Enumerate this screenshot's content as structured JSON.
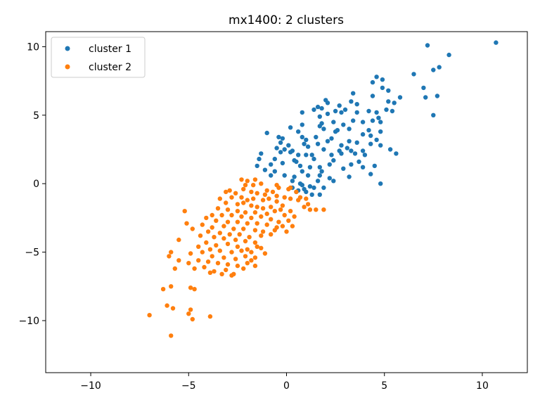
{
  "chart_data": {
    "type": "scatter",
    "title": "mx1400: 2 clusters",
    "xlabel": "",
    "ylabel": "",
    "xlim": [
      -12.3,
      12.3
    ],
    "ylim": [
      -13.8,
      11.1
    ],
    "xticks": [
      -10,
      -5,
      0,
      5,
      10
    ],
    "yticks": [
      -10,
      -5,
      0,
      5,
      10
    ],
    "grid": false,
    "legend": "top-left",
    "series": [
      {
        "name": "cluster 1",
        "color": "#1f77b4",
        "points": [
          [
            10.7,
            10.3
          ],
          [
            7.2,
            10.1
          ],
          [
            8.3,
            9.4
          ],
          [
            7.8,
            8.5
          ],
          [
            7.5,
            8.3
          ],
          [
            6.5,
            8.0
          ],
          [
            4.6,
            7.8
          ],
          [
            4.9,
            7.6
          ],
          [
            4.4,
            7.4
          ],
          [
            7.0,
            7.0
          ],
          [
            4.9,
            7.0
          ],
          [
            5.2,
            6.8
          ],
          [
            3.4,
            6.6
          ],
          [
            7.7,
            6.4
          ],
          [
            7.1,
            6.3
          ],
          [
            4.4,
            6.4
          ],
          [
            5.8,
            6.3
          ],
          [
            3.3,
            6.0
          ],
          [
            5.2,
            6.0
          ],
          [
            5.5,
            5.9
          ],
          [
            2.0,
            6.1
          ],
          [
            2.1,
            5.9
          ],
          [
            3.6,
            5.8
          ],
          [
            1.6,
            5.6
          ],
          [
            2.7,
            5.7
          ],
          [
            1.4,
            5.4
          ],
          [
            1.8,
            5.5
          ],
          [
            2.5,
            5.3
          ],
          [
            3.0,
            5.4
          ],
          [
            4.2,
            5.3
          ],
          [
            4.6,
            5.2
          ],
          [
            5.1,
            5.4
          ],
          [
            5.4,
            5.3
          ],
          [
            3.6,
            5.2
          ],
          [
            2.8,
            5.2
          ],
          [
            2.1,
            5.1
          ],
          [
            0.8,
            5.2
          ],
          [
            1.7,
            4.9
          ],
          [
            4.7,
            4.8
          ],
          [
            7.5,
            5.0
          ],
          [
            1.8,
            4.4
          ],
          [
            2.4,
            4.5
          ],
          [
            3.4,
            4.6
          ],
          [
            3.9,
            4.5
          ],
          [
            4.4,
            4.6
          ],
          [
            4.8,
            4.5
          ],
          [
            0.8,
            4.3
          ],
          [
            1.7,
            4.2
          ],
          [
            2.9,
            4.3
          ],
          [
            3.2,
            4.0
          ],
          [
            1.9,
            4.0
          ],
          [
            0.2,
            4.1
          ],
          [
            2.6,
            3.9
          ],
          [
            2.5,
            3.8
          ],
          [
            0.6,
            3.8
          ],
          [
            4.2,
            3.9
          ],
          [
            4.8,
            3.8
          ],
          [
            3.9,
            3.6
          ],
          [
            0.8,
            3.4
          ],
          [
            1.5,
            3.4
          ],
          [
            2.3,
            3.3
          ],
          [
            1.0,
            3.2
          ],
          [
            -1.0,
            3.7
          ],
          [
            -0.4,
            3.4
          ],
          [
            -0.2,
            3.3
          ],
          [
            4.3,
            3.5
          ],
          [
            4.6,
            3.2
          ],
          [
            2.1,
            3.1
          ],
          [
            3.2,
            3.1
          ],
          [
            3.6,
            3.0
          ],
          [
            4.3,
            2.9
          ],
          [
            4.8,
            2.8
          ],
          [
            -0.3,
            3.0
          ],
          [
            0.1,
            2.8
          ],
          [
            0.9,
            2.9
          ],
          [
            1.6,
            2.9
          ],
          [
            2.8,
            2.8
          ],
          [
            3.1,
            2.6
          ],
          [
            1.1,
            2.7
          ],
          [
            -0.5,
            2.6
          ],
          [
            -0.1,
            2.5
          ],
          [
            0.3,
            2.4
          ],
          [
            1.9,
            2.5
          ],
          [
            2.7,
            2.4
          ],
          [
            3.3,
            2.4
          ],
          [
            3.9,
            2.4
          ],
          [
            5.3,
            2.5
          ],
          [
            5.6,
            2.2
          ],
          [
            -1.3,
            2.2
          ],
          [
            -0.3,
            2.3
          ],
          [
            0.2,
            2.3
          ],
          [
            0.6,
            2.1
          ],
          [
            1.0,
            2.1
          ],
          [
            1.3,
            2.1
          ],
          [
            2.3,
            2.1
          ],
          [
            2.8,
            2.2
          ],
          [
            3.5,
            2.2
          ],
          [
            4.0,
            2.1
          ],
          [
            -1.4,
            1.8
          ],
          [
            -0.6,
            1.8
          ],
          [
            0.4,
            1.7
          ],
          [
            1.4,
            1.8
          ],
          [
            2.4,
            1.7
          ],
          [
            3.7,
            1.6
          ],
          [
            -0.2,
            1.5
          ],
          [
            0.5,
            1.6
          ],
          [
            0.7,
            1.3
          ],
          [
            -1.5,
            1.3
          ],
          [
            -0.8,
            1.4
          ],
          [
            1.2,
            1.2
          ],
          [
            1.7,
            1.2
          ],
          [
            2.2,
            1.4
          ],
          [
            3.3,
            1.4
          ],
          [
            4.5,
            1.3
          ],
          [
            -1.1,
            1.0
          ],
          [
            -0.6,
            0.9
          ],
          [
            0.8,
            0.9
          ],
          [
            1.1,
            0.6
          ],
          [
            1.8,
            0.9
          ],
          [
            2.9,
            1.1
          ],
          [
            3.9,
            1.2
          ],
          [
            -0.8,
            0.6
          ],
          [
            -0.1,
            0.6
          ],
          [
            0.4,
            0.5
          ],
          [
            1.7,
            0.6
          ],
          [
            2.2,
            0.4
          ],
          [
            3.2,
            0.5
          ],
          [
            4.3,
            0.7
          ],
          [
            0.3,
            0.2
          ],
          [
            0.7,
            0.0
          ],
          [
            1.6,
            0.2
          ],
          [
            2.4,
            0.2
          ],
          [
            4.8,
            0.0
          ],
          [
            0.8,
            -0.1
          ],
          [
            1.4,
            -0.3
          ],
          [
            0.9,
            -0.4
          ],
          [
            1.3,
            -0.8
          ],
          [
            1.7,
            -0.8
          ],
          [
            0.5,
            -0.6
          ],
          [
            1.0,
            -0.6
          ],
          [
            1.9,
            -0.3
          ],
          [
            0.3,
            -0.3
          ],
          [
            1.2,
            -0.2
          ],
          [
            0.6,
            -0.5
          ]
        ]
      },
      {
        "name": "cluster 2",
        "color": "#ff7f0e",
        "points": [
          [
            -0.2,
            -1.6
          ],
          [
            -2.3,
            0.3
          ],
          [
            -2.0,
            0.2
          ],
          [
            -1.6,
            0.3
          ],
          [
            -2.1,
            -0.1
          ],
          [
            -1.7,
            -0.1
          ],
          [
            -1.3,
            0.0
          ],
          [
            -0.5,
            -0.1
          ],
          [
            -1.0,
            -0.5
          ],
          [
            -0.4,
            -0.3
          ],
          [
            0.1,
            -0.4
          ],
          [
            0.5,
            -0.6
          ],
          [
            -2.2,
            -0.4
          ],
          [
            -1.8,
            -0.6
          ],
          [
            -1.5,
            -0.7
          ],
          [
            -0.7,
            -0.6
          ],
          [
            0.2,
            -0.3
          ],
          [
            -3.1,
            -0.6
          ],
          [
            -2.9,
            -0.5
          ],
          [
            -2.6,
            -0.7
          ],
          [
            -1.1,
            -0.8
          ],
          [
            -0.5,
            -0.9
          ],
          [
            -0.1,
            -1.0
          ],
          [
            0.7,
            -1.0
          ],
          [
            1.0,
            -1.1
          ],
          [
            -3.4,
            -1.1
          ],
          [
            -2.8,
            -1.0
          ],
          [
            -2.3,
            -1.0
          ],
          [
            -2.0,
            -1.2
          ],
          [
            -1.7,
            -1.1
          ],
          [
            -1.2,
            -1.2
          ],
          [
            -0.9,
            -1.1
          ],
          [
            -0.5,
            -1.3
          ],
          [
            0.2,
            -1.1
          ],
          [
            0.6,
            -1.2
          ],
          [
            1.1,
            -1.5
          ],
          [
            1.5,
            -1.9
          ],
          [
            1.9,
            -1.9
          ],
          [
            1.2,
            -1.9
          ],
          [
            0.9,
            -1.7
          ],
          [
            -3.1,
            -1.4
          ],
          [
            -2.5,
            -1.5
          ],
          [
            -2.2,
            -1.4
          ],
          [
            -1.8,
            -1.6
          ],
          [
            -1.5,
            -1.7
          ],
          [
            -1.2,
            -1.8
          ],
          [
            -0.8,
            -1.7
          ],
          [
            -0.3,
            -1.9
          ],
          [
            0.2,
            -2.0
          ],
          [
            -3.5,
            -1.8
          ],
          [
            -3.0,
            -1.9
          ],
          [
            -2.5,
            -2.0
          ],
          [
            -2.1,
            -2.1
          ],
          [
            -1.6,
            -2.1
          ],
          [
            -1.0,
            -2.2
          ],
          [
            -0.6,
            -2.0
          ],
          [
            -0.1,
            -2.3
          ],
          [
            0.4,
            -2.4
          ],
          [
            -3.8,
            -2.3
          ],
          [
            -3.3,
            -2.3
          ],
          [
            -2.8,
            -2.3
          ],
          [
            -2.3,
            -2.4
          ],
          [
            -1.8,
            -2.5
          ],
          [
            -1.3,
            -2.4
          ],
          [
            -0.8,
            -2.6
          ],
          [
            -0.4,
            -2.8
          ],
          [
            0.1,
            -2.7
          ],
          [
            -4.1,
            -2.5
          ],
          [
            -3.6,
            -2.7
          ],
          [
            -3.0,
            -2.8
          ],
          [
            -2.5,
            -2.8
          ],
          [
            -2.0,
            -2.9
          ],
          [
            -1.5,
            -2.9
          ],
          [
            -1.0,
            -3.0
          ],
          [
            -0.5,
            -3.2
          ],
          [
            -0.2,
            -3.1
          ],
          [
            0.3,
            -3.1
          ],
          [
            -4.3,
            -3.0
          ],
          [
            -3.8,
            -3.2
          ],
          [
            -3.2,
            -3.1
          ],
          [
            -2.7,
            -3.3
          ],
          [
            -2.2,
            -3.3
          ],
          [
            -1.6,
            -3.4
          ],
          [
            -1.2,
            -3.5
          ],
          [
            -0.6,
            -3.4
          ],
          [
            0.0,
            -3.5
          ],
          [
            -4.0,
            -3.5
          ],
          [
            -3.4,
            -3.6
          ],
          [
            -2.9,
            -3.7
          ],
          [
            -2.4,
            -3.7
          ],
          [
            -1.9,
            -3.9
          ],
          [
            -1.3,
            -3.8
          ],
          [
            -0.8,
            -3.7
          ],
          [
            -3.7,
            -3.9
          ],
          [
            -3.2,
            -4.0
          ],
          [
            -2.6,
            -4.1
          ],
          [
            -2.1,
            -4.2
          ],
          [
            -1.6,
            -4.3
          ],
          [
            -4.1,
            -4.3
          ],
          [
            -3.6,
            -4.5
          ],
          [
            -3.0,
            -4.4
          ],
          [
            -2.5,
            -4.6
          ],
          [
            -2.0,
            -4.8
          ],
          [
            -1.5,
            -4.6
          ],
          [
            -1.1,
            -5.1
          ],
          [
            -4.5,
            -4.6
          ],
          [
            -3.9,
            -4.8
          ],
          [
            -3.4,
            -4.9
          ],
          [
            -2.8,
            -5.0
          ],
          [
            -2.3,
            -4.9
          ],
          [
            -1.8,
            -5.0
          ],
          [
            -1.3,
            -4.7
          ],
          [
            -4.9,
            -5.1
          ],
          [
            -4.3,
            -5.0
          ],
          [
            -3.8,
            -5.3
          ],
          [
            -3.2,
            -5.4
          ],
          [
            -2.6,
            -5.5
          ],
          [
            -2.1,
            -5.3
          ],
          [
            -1.6,
            -5.4
          ],
          [
            -5.5,
            -4.1
          ],
          [
            -5.1,
            -2.9
          ],
          [
            -5.2,
            -2.0
          ],
          [
            -4.8,
            -3.3
          ],
          [
            -4.4,
            -3.8
          ],
          [
            -5.0,
            -5.8
          ],
          [
            -4.5,
            -5.6
          ],
          [
            -4.0,
            -5.7
          ],
          [
            -3.5,
            -5.8
          ],
          [
            -3.0,
            -5.9
          ],
          [
            -2.5,
            -6.0
          ],
          [
            -2.0,
            -5.8
          ],
          [
            -1.6,
            -6.0
          ],
          [
            -4.7,
            -6.2
          ],
          [
            -4.2,
            -6.1
          ],
          [
            -3.7,
            -6.4
          ],
          [
            -3.1,
            -6.3
          ],
          [
            -2.7,
            -6.6
          ],
          [
            -2.2,
            -6.2
          ],
          [
            -1.8,
            -5.6
          ],
          [
            -3.9,
            -6.5
          ],
          [
            -3.3,
            -6.6
          ],
          [
            -2.8,
            -6.7
          ],
          [
            -5.7,
            -6.2
          ],
          [
            -5.9,
            -5.0
          ],
          [
            -6.0,
            -5.3
          ],
          [
            -5.5,
            -5.6
          ],
          [
            -6.3,
            -7.7
          ],
          [
            -5.9,
            -7.5
          ],
          [
            -4.9,
            -7.6
          ],
          [
            -4.7,
            -7.7
          ],
          [
            -6.1,
            -8.9
          ],
          [
            -5.8,
            -9.1
          ],
          [
            -4.9,
            -9.2
          ],
          [
            -5.0,
            -9.5
          ],
          [
            -4.8,
            -9.9
          ],
          [
            -7.0,
            -9.6
          ],
          [
            -3.9,
            -9.7
          ],
          [
            -5.9,
            -11.1
          ]
        ]
      }
    ]
  }
}
